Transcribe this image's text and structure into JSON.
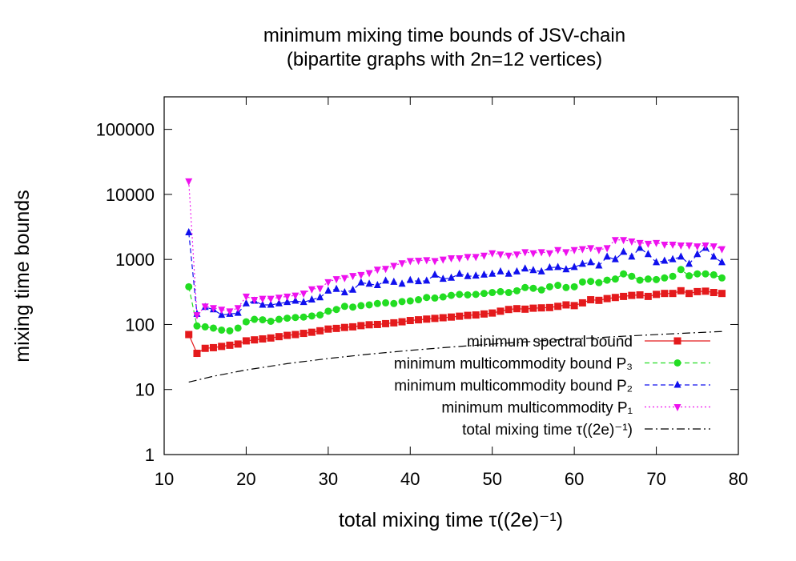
{
  "chart_data": {
    "type": "line",
    "title": "minimum mixing time bounds of JSV-chain",
    "subtitle": "(bipartite graphs with 2n=12 vertices)",
    "xlabel": "total mixing time τ((2e)⁻¹)",
    "ylabel": "mixing time bounds",
    "log_y": true,
    "legend": "bottom right",
    "xlim": [
      10,
      80
    ],
    "xticks": [
      10,
      20,
      30,
      40,
      50,
      60,
      70,
      80
    ],
    "ylim": [
      1,
      316228
    ],
    "yticks": [
      1,
      10,
      100,
      1000,
      10000,
      100000
    ],
    "x": [
      13,
      14,
      15,
      16,
      17,
      18,
      19,
      20,
      21,
      22,
      23,
      24,
      25,
      26,
      27,
      28,
      29,
      30,
      31,
      32,
      33,
      34,
      35,
      36,
      37,
      38,
      39,
      40,
      41,
      42,
      43,
      44,
      45,
      46,
      47,
      48,
      49,
      50,
      51,
      52,
      53,
      54,
      55,
      56,
      57,
      58,
      59,
      60,
      61,
      62,
      63,
      64,
      65,
      66,
      67,
      68,
      69,
      70,
      71,
      72,
      73,
      74,
      75,
      76,
      77,
      78
    ],
    "series": [
      {
        "name": "minimum spectral bound",
        "color": "#e41a1c",
        "marker": "square",
        "line_style": "solid",
        "values": [
          70,
          36,
          43,
          44,
          46,
          48,
          50,
          56,
          58,
          60,
          62,
          65,
          68,
          70,
          73,
          76,
          80,
          85,
          87,
          90,
          92,
          96,
          99,
          100,
          103,
          106,
          110,
          115,
          118,
          121,
          124,
          127,
          130,
          134,
          138,
          140,
          145,
          150,
          160,
          170,
          175,
          172,
          178,
          180,
          182,
          190,
          200,
          195,
          215,
          240,
          235,
          250,
          260,
          270,
          280,
          285,
          270,
          290,
          300,
          300,
          330,
          300,
          320,
          325,
          310,
          300
        ]
      },
      {
        "name": "minimum multicommodity bound P₃",
        "color": "#22dd22",
        "marker": "circle",
        "line_style": "dashed",
        "values": [
          380,
          95,
          92,
          88,
          82,
          80,
          88,
          110,
          120,
          118,
          112,
          120,
          125,
          128,
          130,
          135,
          140,
          160,
          170,
          190,
          185,
          195,
          200,
          210,
          215,
          210,
          225,
          230,
          240,
          260,
          255,
          265,
          280,
          290,
          285,
          290,
          300,
          310,
          320,
          310,
          330,
          370,
          360,
          340,
          380,
          400,
          370,
          380,
          450,
          460,
          440,
          480,
          500,
          600,
          550,
          480,
          500,
          490,
          520,
          550,
          700,
          560,
          600,
          600,
          580,
          520
        ]
      },
      {
        "name": "minimum multicommodity bound P₂",
        "color": "#1010ee",
        "marker": "triangle-up",
        "line_style": "dashed",
        "values": [
          2600,
          145,
          185,
          170,
          140,
          145,
          150,
          210,
          230,
          200,
          200,
          210,
          220,
          230,
          220,
          240,
          260,
          330,
          350,
          310,
          340,
          440,
          420,
          400,
          470,
          450,
          420,
          480,
          460,
          470,
          580,
          500,
          520,
          600,
          550,
          560,
          580,
          600,
          650,
          600,
          650,
          720,
          680,
          650,
          750,
          760,
          700,
          760,
          850,
          900,
          800,
          1100,
          1000,
          1300,
          1100,
          1500,
          1200,
          900,
          950,
          1000,
          1100,
          850,
          1200,
          1500,
          1100,
          900
        ]
      },
      {
        "name": "minimum multicommodity P₁",
        "color": "#ee11ee",
        "marker": "triangle-down",
        "line_style": "dotted",
        "values": [
          16000,
          140,
          190,
          180,
          170,
          160,
          180,
          270,
          240,
          250,
          250,
          260,
          270,
          280,
          300,
          350,
          360,
          450,
          500,
          520,
          560,
          580,
          620,
          700,
          720,
          800,
          880,
          950,
          960,
          980,
          950,
          1000,
          1050,
          1050,
          1100,
          1100,
          1150,
          1250,
          1200,
          1150,
          1200,
          1300,
          1250,
          1300,
          1250,
          1400,
          1300,
          1400,
          1450,
          1500,
          1400,
          1500,
          2000,
          2000,
          1900,
          1800,
          1750,
          1800,
          1700,
          1700,
          1650,
          1650,
          1600,
          1650,
          1600,
          1450
        ]
      },
      {
        "name": "total mixing time τ((2e)⁻¹)",
        "color": "#000000",
        "marker": "none",
        "line_style": "dashdot",
        "x": [
          13,
          16,
          20,
          25,
          30,
          35,
          40,
          45,
          50,
          55,
          60,
          65,
          70,
          75,
          78
        ],
        "values": [
          13,
          16,
          20,
          25,
          30,
          35,
          40,
          45,
          50,
          55,
          60,
          65,
          70,
          75,
          78
        ]
      }
    ]
  }
}
